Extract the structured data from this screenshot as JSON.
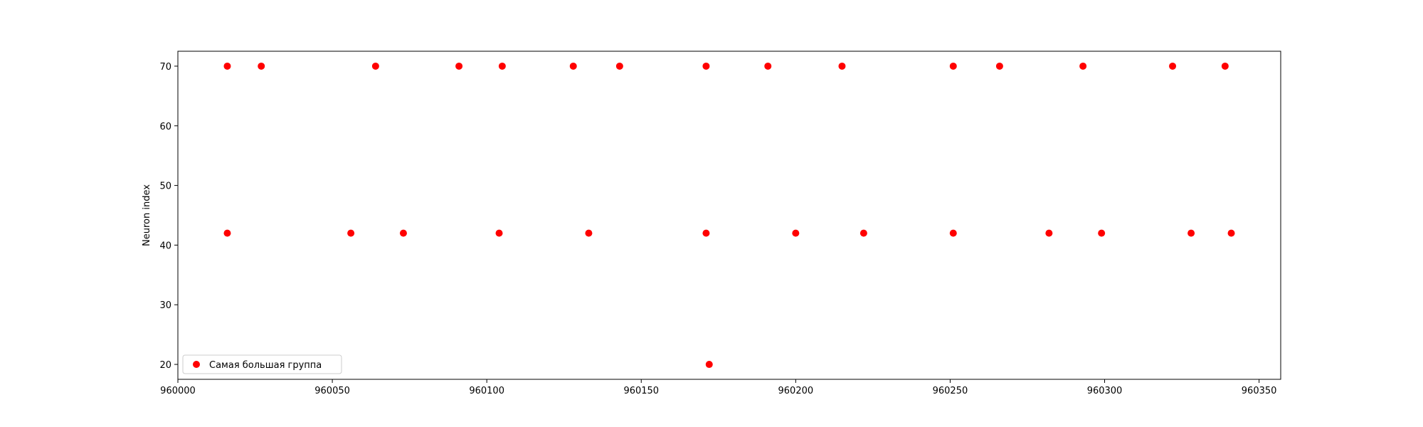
{
  "chart_data": {
    "type": "scatter",
    "title": "",
    "xlabel": "",
    "ylabel": "Neuron index",
    "xlim": [
      960000,
      960357
    ],
    "ylim": [
      17.5,
      72.5
    ],
    "xticks": [
      960000,
      960050,
      960100,
      960150,
      960200,
      960250,
      960300,
      960350
    ],
    "yticks": [
      20,
      30,
      40,
      50,
      60,
      70
    ],
    "grid": false,
    "legend_position": "lower-left",
    "series": [
      {
        "name": "Самая большая группа",
        "color": "#ff0000",
        "marker": "circle",
        "points": [
          [
            960016,
            70
          ],
          [
            960027,
            70
          ],
          [
            960064,
            70
          ],
          [
            960091,
            70
          ],
          [
            960105,
            70
          ],
          [
            960128,
            70
          ],
          [
            960143,
            70
          ],
          [
            960171,
            70
          ],
          [
            960191,
            70
          ],
          [
            960215,
            70
          ],
          [
            960251,
            70
          ],
          [
            960266,
            70
          ],
          [
            960293,
            70
          ],
          [
            960322,
            70
          ],
          [
            960339,
            70
          ],
          [
            960016,
            42
          ],
          [
            960056,
            42
          ],
          [
            960073,
            42
          ],
          [
            960104,
            42
          ],
          [
            960133,
            42
          ],
          [
            960171,
            42
          ],
          [
            960200,
            42
          ],
          [
            960222,
            42
          ],
          [
            960251,
            42
          ],
          [
            960282,
            42
          ],
          [
            960299,
            42
          ],
          [
            960328,
            42
          ],
          [
            960341,
            42
          ],
          [
            960172,
            20
          ]
        ]
      }
    ]
  }
}
